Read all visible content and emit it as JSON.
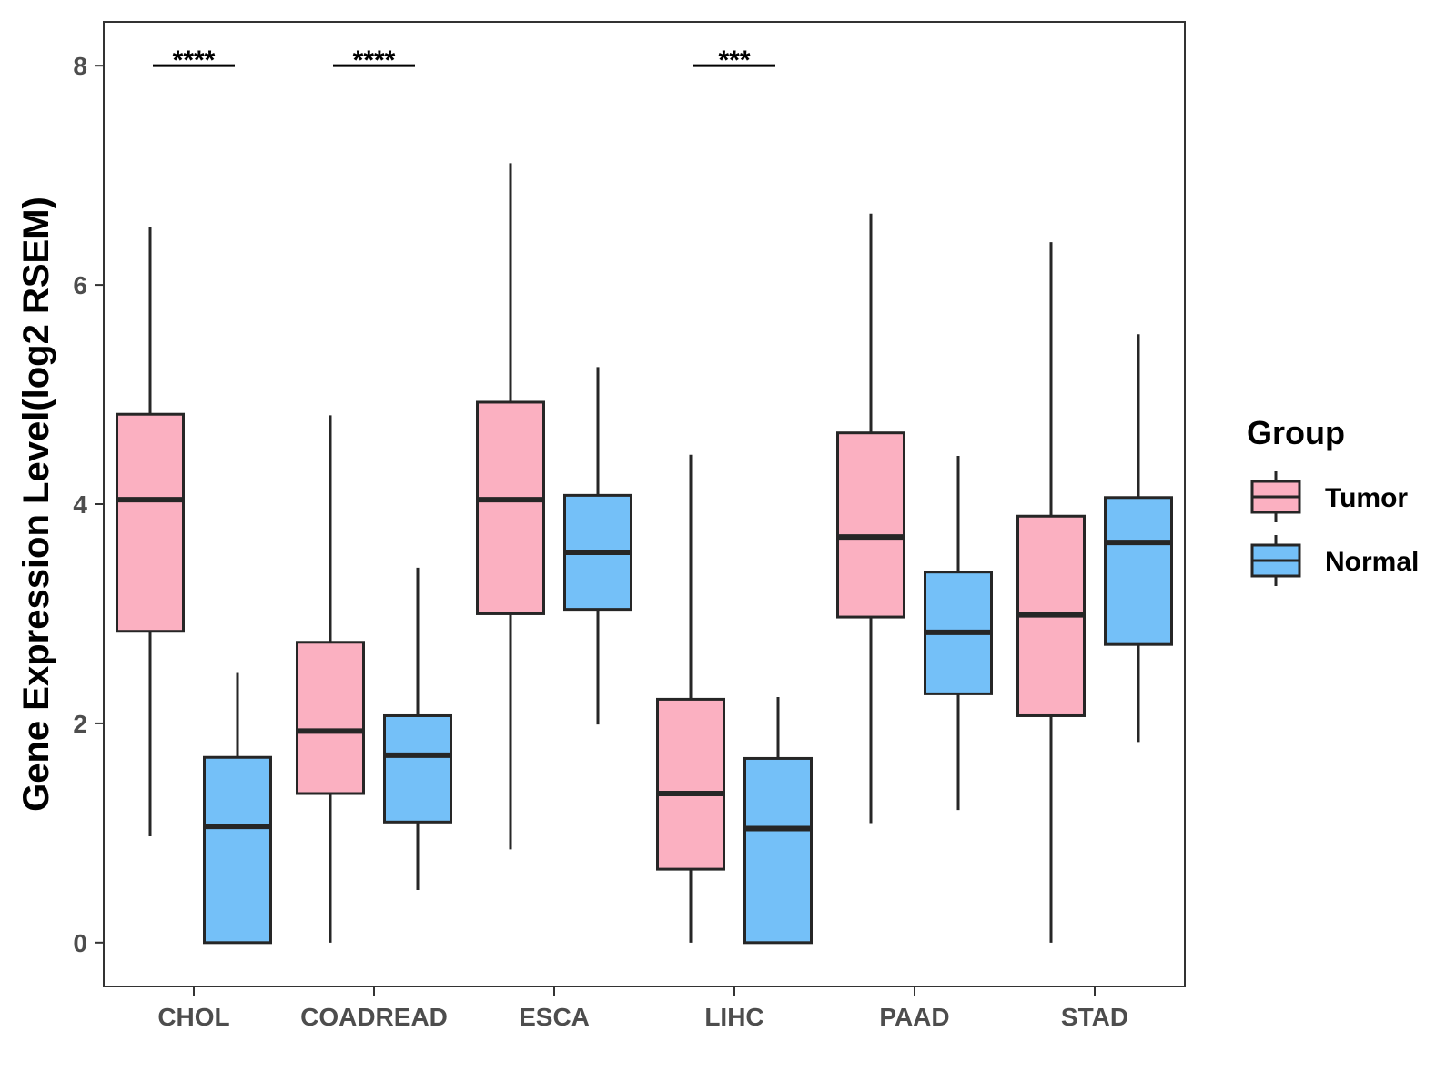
{
  "chart_data": {
    "type": "boxplot",
    "title": "",
    "xlabel": "",
    "ylabel": "Gene Expression Level(log2 RSEM)",
    "ylim": [
      -0.4,
      8.4
    ],
    "yticks": [
      0,
      2,
      4,
      6,
      8
    ],
    "categories": [
      "CHOL",
      "COADREAD",
      "ESCA",
      "LIHC",
      "PAAD",
      "STAD"
    ],
    "legend": {
      "title": "Group",
      "position": "right"
    },
    "series": [
      {
        "name": "Tumor",
        "color": "#FBB0C1",
        "boxes": [
          {
            "min": 0.97,
            "q1": 2.84,
            "median": 4.04,
            "q3": 4.82,
            "max": 6.53
          },
          {
            "min": 0.0,
            "q1": 1.36,
            "median": 1.93,
            "q3": 2.74,
            "max": 4.81
          },
          {
            "min": 0.85,
            "q1": 3.0,
            "median": 4.04,
            "q3": 4.93,
            "max": 7.11
          },
          {
            "min": 0.0,
            "q1": 0.67,
            "median": 1.36,
            "q3": 2.22,
            "max": 4.45
          },
          {
            "min": 1.09,
            "q1": 2.97,
            "median": 3.7,
            "q3": 4.65,
            "max": 6.65
          },
          {
            "min": 0.0,
            "q1": 2.07,
            "median": 2.99,
            "q3": 3.89,
            "max": 6.39
          }
        ]
      },
      {
        "name": "Normal",
        "color": "#74C0F8",
        "boxes": [
          {
            "min": 0.0,
            "q1": 0.0,
            "median": 1.06,
            "q3": 1.69,
            "max": 2.46
          },
          {
            "min": 0.48,
            "q1": 1.1,
            "median": 1.71,
            "q3": 2.07,
            "max": 3.42
          },
          {
            "min": 1.99,
            "q1": 3.04,
            "median": 3.56,
            "q3": 4.08,
            "max": 5.25
          },
          {
            "min": 0.0,
            "q1": 0.0,
            "median": 1.04,
            "q3": 1.68,
            "max": 2.24
          },
          {
            "min": 1.21,
            "q1": 2.27,
            "median": 2.83,
            "q3": 3.38,
            "max": 4.44
          },
          {
            "min": 1.83,
            "q1": 2.72,
            "median": 3.65,
            "q3": 4.06,
            "max": 5.55
          }
        ]
      }
    ],
    "annotations": [
      {
        "category": "CHOL",
        "label": "****",
        "y": 8
      },
      {
        "category": "COADREAD",
        "label": "****",
        "y": 8
      },
      {
        "category": "LIHC",
        "label": "***",
        "y": 8
      }
    ]
  }
}
